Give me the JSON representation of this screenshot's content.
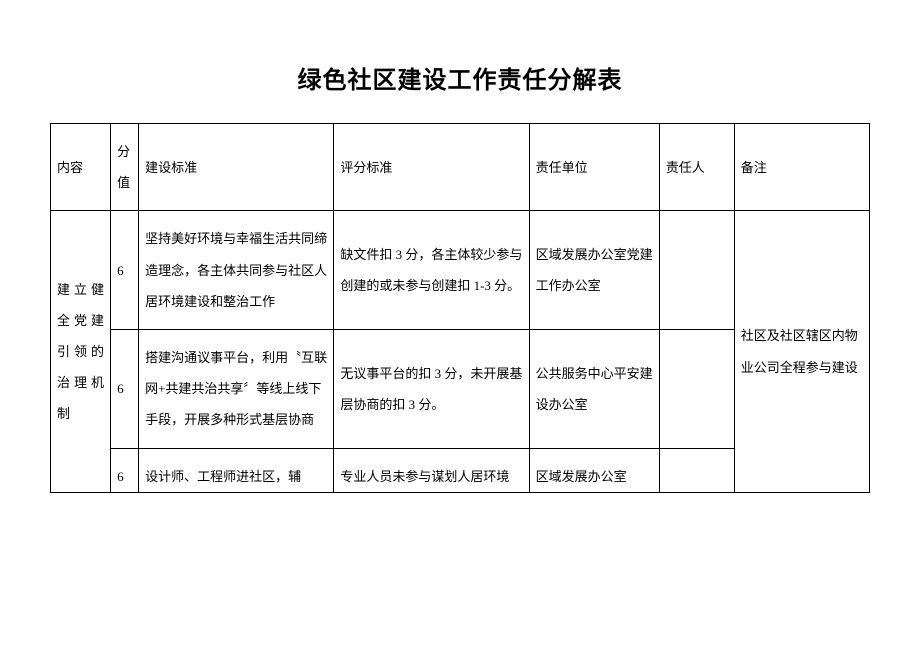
{
  "title": "绿色社区建设工作责任分解表",
  "headers": {
    "c1": "内容",
    "c2": "分值",
    "c3": "建设标准",
    "c4": "评分标准",
    "c5": "责任单位",
    "c6": "责任人",
    "c7": "备注"
  },
  "category": "建立健全党建引领的治理机制",
  "rows": [
    {
      "score": "6",
      "standard": "坚持美好环境与幸福生活共同缔造理念，各主体共同参与社区人居环境建设和整治工作",
      "criteria": "缺文件扣 3 分，各主体较少参与创建的或未参与创建扣 1-3 分。",
      "unit": "区域发展办公室党建工作办公室",
      "person": "",
      "remark": ""
    },
    {
      "score": "6",
      "standard": "搭建沟通议事平台，利用〝互联网+共建共治共享〞等线上线下手段，开展多种形式基层协商",
      "criteria": "无议事平台的扣 3 分，未开展基层协商的扣 3 分。",
      "unit": "公共服务中心平安建设办公室",
      "person": "",
      "remark": ""
    },
    {
      "score": "6",
      "standard": "设计师、工程师进社区，辅",
      "criteria": "专业人员未参与谋划人居环境",
      "unit": "区域发展办公室",
      "person": "",
      "remark": ""
    }
  ],
  "remark_merged": "社区及社区辖区内物业公司全程参与建设"
}
